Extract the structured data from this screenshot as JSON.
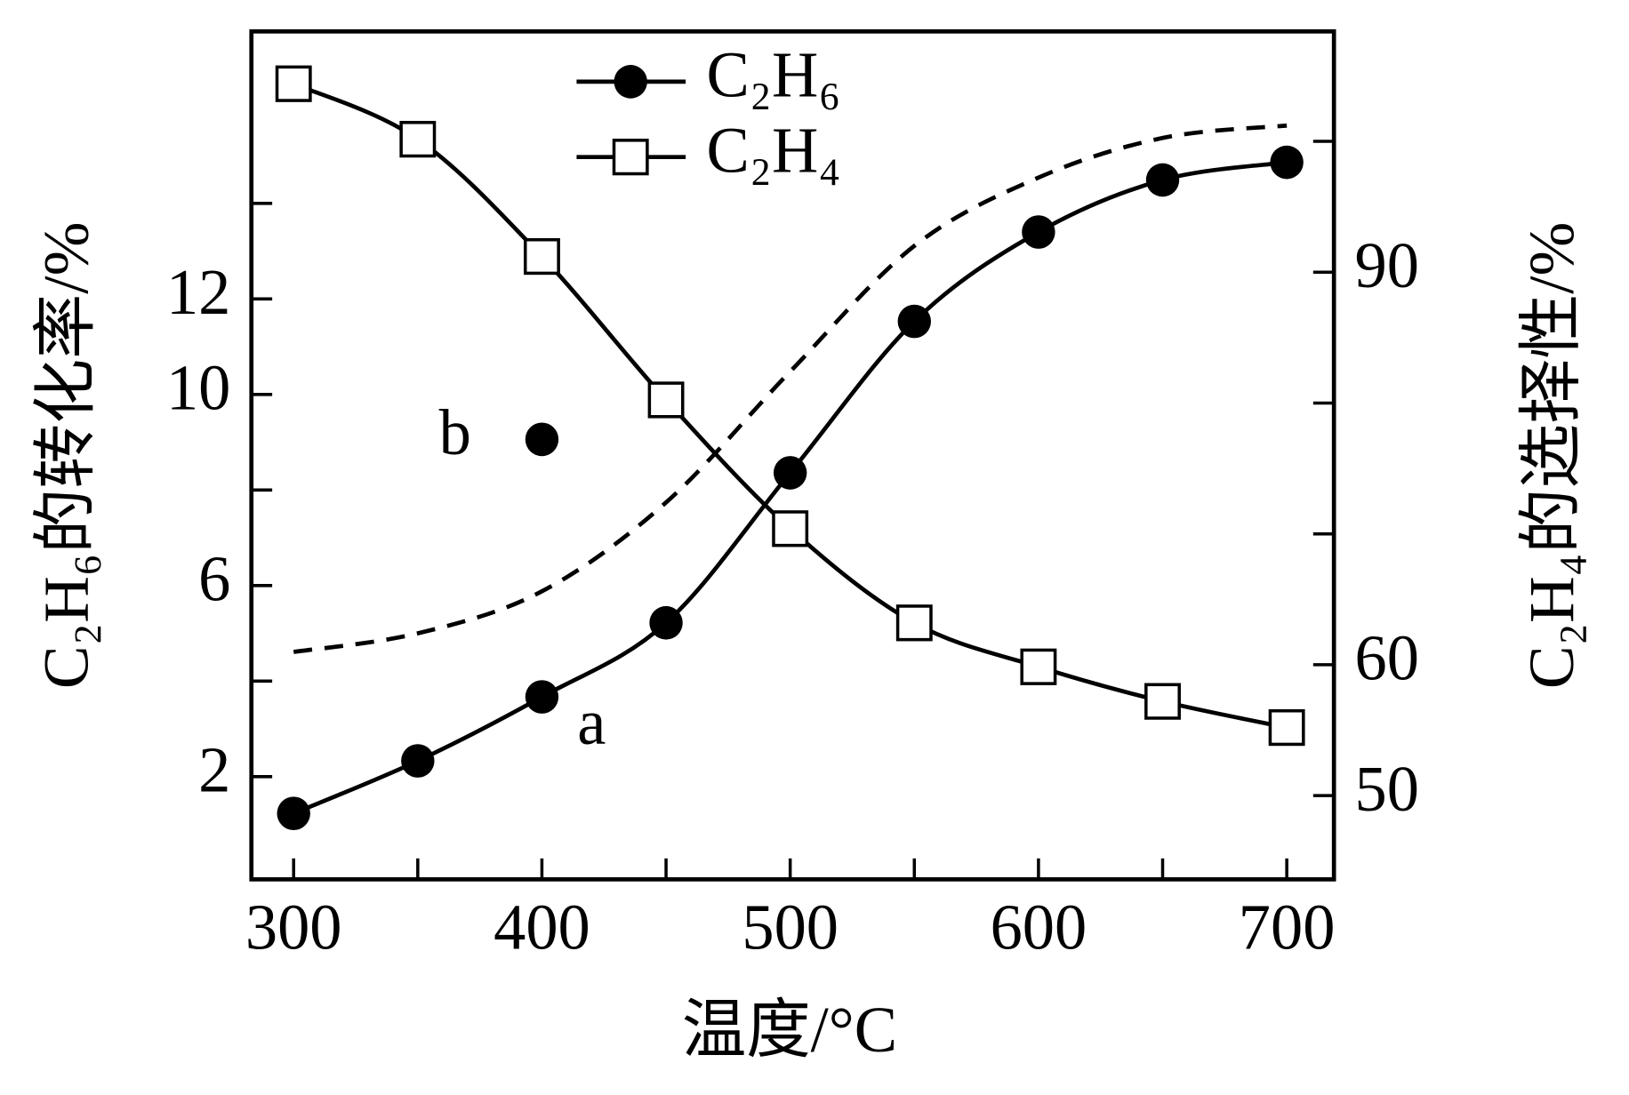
{
  "chart_data": {
    "type": "line",
    "x": [
      300,
      350,
      400,
      450,
      500,
      550,
      600,
      650,
      700
    ],
    "xlim": [
      283,
      719
    ],
    "xticks": [
      300,
      400,
      500,
      600,
      700
    ],
    "xminor_ticks": [
      350,
      450,
      550,
      650
    ],
    "ylim": [
      -0.15,
      17.6
    ],
    "yticks": [
      2,
      6,
      10,
      12
    ],
    "yminor_ticks": [
      4,
      8,
      14
    ],
    "y2lim": [
      43.6,
      108.4
    ],
    "y2ticks": [
      50,
      60,
      90
    ],
    "y2minor_ticks": [
      70,
      80,
      100
    ],
    "xlabel": "温度/°C",
    "ylabel": "C₂H₆的转化率/%",
    "y2label": "C₂H₄的选择性/%",
    "legend": "top",
    "series": [
      {
        "name": "C₂H₆",
        "marker": "circle",
        "color": "#000",
        "values": [
          1.23,
          2.33,
          3.67,
          5.22,
          8.36,
          11.53,
          13.4,
          14.49,
          14.86
        ]
      },
      {
        "name": "C₂H₄",
        "marker": "square",
        "color": "#000",
        "axis": "y2",
        "values": [
          104.4,
          100.16,
          91.2,
          80.24,
          70.4,
          63.2,
          59.84,
          57.2,
          55.2
        ]
      },
      {
        "dashed": true,
        "color": "#000",
        "values": [
          4.61,
          5.0,
          5.88,
          7.74,
          10.48,
          13.11,
          14.54,
          15.37,
          15.63
        ]
      }
    ],
    "annotations": [
      {
        "text": "a",
        "x": 420,
        "y": 3.0
      },
      {
        "text": "b",
        "x": 365,
        "y": 9.06
      }
    ],
    "points": [
      {
        "x": 400,
        "y": 9.06
      }
    ]
  }
}
